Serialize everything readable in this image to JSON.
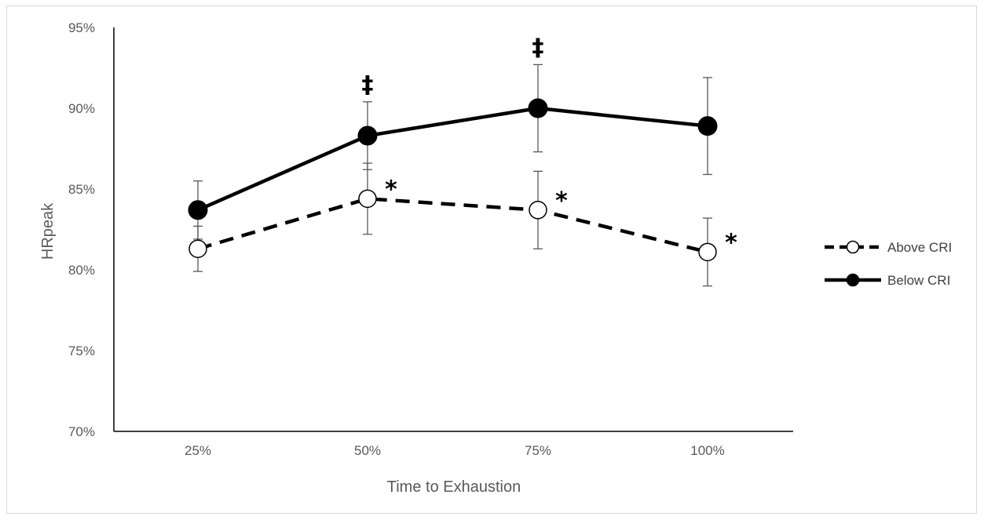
{
  "chart_data": {
    "type": "line",
    "xlabel": "Time to Exhaustion",
    "ylabel": "HRpeak",
    "categories": [
      "25%",
      "50%",
      "75%",
      "100%"
    ],
    "ylim": [
      70,
      95
    ],
    "y_ticks": [
      "70%",
      "75%",
      "80%",
      "85%",
      "90%",
      "95%"
    ],
    "grid": false,
    "legend_position": "right",
    "series": [
      {
        "name": "Above CRI",
        "style": "dashed-open-circle",
        "values": [
          81.3,
          84.4,
          83.7,
          81.1
        ],
        "error": [
          1.4,
          2.2,
          2.4,
          2.1
        ],
        "annotations": [
          "",
          "*",
          "*",
          "*"
        ]
      },
      {
        "name": "Below CRI",
        "style": "solid-filled-circle",
        "values": [
          83.7,
          88.3,
          90.0,
          88.9
        ],
        "error": [
          1.8,
          2.1,
          2.7,
          3.0
        ],
        "annotations": [
          "",
          "‡",
          "‡",
          ""
        ]
      }
    ],
    "colors": {
      "line": "#000000",
      "error_bar": "#595959",
      "axis": "#000000",
      "text": "#595959"
    }
  }
}
